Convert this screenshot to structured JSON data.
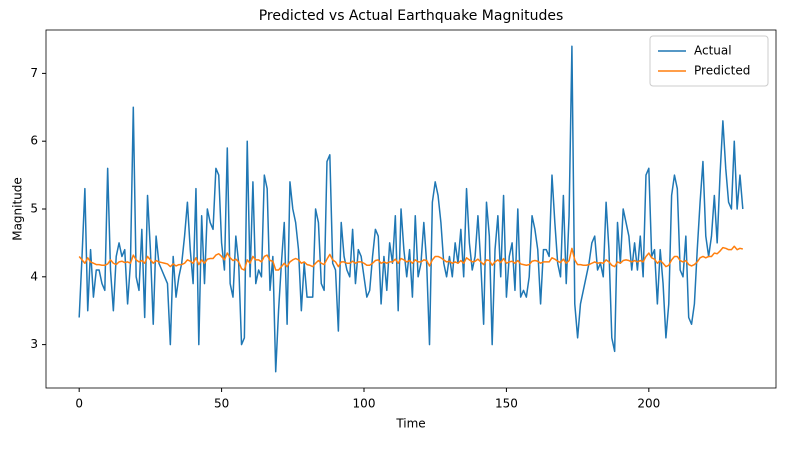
{
  "chart_data": {
    "type": "line",
    "title": "Predicted vs Actual Earthquake Magnitudes",
    "xlabel": "Time",
    "ylabel": "Magnitude",
    "x": [
      0,
      1,
      2,
      3,
      4,
      5,
      6,
      7,
      8,
      9,
      10,
      11,
      12,
      13,
      14,
      15,
      16,
      17,
      18,
      19,
      20,
      21,
      22,
      23,
      24,
      25,
      26,
      27,
      28,
      29,
      30,
      31,
      32,
      33,
      34,
      35,
      36,
      37,
      38,
      39,
      40,
      41,
      42,
      43,
      44,
      45,
      46,
      47,
      48,
      49,
      50,
      51,
      52,
      53,
      54,
      55,
      56,
      57,
      58,
      59,
      60,
      61,
      62,
      63,
      64,
      65,
      66,
      67,
      68,
      69,
      70,
      71,
      72,
      73,
      74,
      75,
      76,
      77,
      78,
      79,
      80,
      81,
      82,
      83,
      84,
      85,
      86,
      87,
      88,
      89,
      90,
      91,
      92,
      93,
      94,
      95,
      96,
      97,
      98,
      99,
      100,
      101,
      102,
      103,
      104,
      105,
      106,
      107,
      108,
      109,
      110,
      111,
      112,
      113,
      114,
      115,
      116,
      117,
      118,
      119,
      120,
      121,
      122,
      123,
      124,
      125,
      126,
      127,
      128,
      129,
      130,
      131,
      132,
      133,
      134,
      135,
      136,
      137,
      138,
      139,
      140,
      141,
      142,
      143,
      144,
      145,
      146,
      147,
      148,
      149,
      150,
      151,
      152,
      153,
      154,
      155,
      156,
      157,
      158,
      159,
      160,
      161,
      162,
      163,
      164,
      165,
      166,
      167,
      168,
      169,
      170,
      171,
      172,
      173,
      174,
      175,
      176,
      177,
      178,
      179,
      180,
      181,
      182,
      183,
      184,
      185,
      186,
      187,
      188,
      189,
      190,
      191,
      192,
      193,
      194,
      195,
      196,
      197,
      198,
      199,
      200,
      201,
      202,
      203,
      204,
      205,
      206,
      207,
      208,
      209,
      210,
      211,
      212,
      213,
      214,
      215,
      216,
      217,
      218,
      219,
      220,
      221,
      222,
      223,
      224,
      225,
      226,
      227,
      228,
      229,
      230,
      231,
      232,
      233
    ],
    "series": [
      {
        "name": "Actual",
        "color": "#1f77b4",
        "values": [
          3.4,
          4.3,
          5.3,
          3.5,
          4.4,
          3.7,
          4.1,
          4.1,
          3.9,
          3.8,
          5.6,
          4.1,
          3.5,
          4.3,
          4.5,
          4.3,
          4.4,
          3.6,
          4.2,
          6.5,
          4.0,
          3.8,
          4.7,
          3.4,
          5.2,
          4.4,
          3.3,
          4.6,
          4.2,
          4.1,
          4.0,
          3.9,
          3.0,
          4.3,
          3.7,
          4.0,
          4.2,
          4.6,
          5.1,
          4.4,
          3.9,
          5.3,
          3.0,
          4.9,
          3.9,
          5.0,
          4.8,
          4.7,
          5.6,
          5.5,
          4.5,
          4.1,
          5.9,
          3.9,
          3.7,
          4.6,
          4.2,
          3.0,
          3.1,
          6.0,
          4.0,
          5.4,
          3.9,
          4.1,
          4.0,
          5.5,
          5.3,
          3.8,
          4.3,
          2.6,
          3.5,
          4.2,
          4.8,
          3.3,
          5.4,
          5.0,
          4.8,
          4.4,
          3.5,
          4.2,
          3.7,
          3.7,
          3.7,
          5.0,
          4.8,
          3.9,
          3.8,
          5.7,
          5.8,
          4.2,
          4.1,
          3.2,
          4.8,
          4.3,
          4.1,
          4.0,
          4.7,
          3.9,
          4.4,
          4.3,
          4.0,
          3.7,
          3.8,
          4.3,
          4.7,
          4.6,
          3.6,
          4.3,
          3.8,
          4.5,
          4.2,
          4.9,
          3.5,
          5.0,
          4.4,
          4.0,
          4.4,
          3.7,
          4.9,
          4.0,
          4.2,
          4.8,
          4.2,
          3.0,
          5.1,
          5.4,
          5.2,
          4.8,
          4.2,
          4.0,
          4.3,
          4.0,
          4.5,
          4.2,
          4.7,
          4.0,
          5.3,
          4.5,
          4.1,
          4.3,
          4.9,
          4.2,
          3.3,
          5.1,
          4.6,
          3.0,
          4.4,
          4.9,
          4.0,
          5.2,
          3.7,
          4.3,
          4.5,
          3.8,
          5.0,
          3.7,
          3.8,
          3.7,
          4.0,
          4.9,
          4.7,
          4.4,
          3.6,
          4.4,
          4.4,
          4.3,
          5.5,
          4.8,
          4.2,
          4.0,
          5.2,
          3.9,
          4.9,
          7.4,
          3.6,
          3.1,
          3.6,
          3.8,
          4.0,
          4.2,
          4.5,
          4.6,
          4.1,
          4.2,
          4.0,
          5.1,
          4.4,
          3.1,
          2.9,
          4.8,
          4.2,
          5.0,
          4.8,
          4.6,
          4.1,
          4.5,
          4.1,
          4.6,
          4.0,
          5.5,
          5.6,
          4.3,
          4.4,
          3.6,
          4.4,
          3.9,
          3.1,
          3.6,
          5.2,
          5.5,
          5.3,
          4.1,
          4.0,
          4.6,
          3.4,
          3.3,
          3.6,
          4.4,
          5.1,
          5.7,
          4.6,
          4.3,
          4.6,
          5.2,
          4.5,
          5.5,
          6.3,
          5.6,
          5.1,
          5.0,
          6.0,
          5.0,
          5.5,
          5.0
        ]
      },
      {
        "name": "Predicted",
        "color": "#ff7f0e",
        "values": [
          4.3,
          4.25,
          4.2,
          4.28,
          4.22,
          4.2,
          4.18,
          4.18,
          4.17,
          4.17,
          4.19,
          4.25,
          4.2,
          4.18,
          4.22,
          4.23,
          4.21,
          4.22,
          4.2,
          4.32,
          4.25,
          4.22,
          4.24,
          4.2,
          4.3,
          4.25,
          4.2,
          4.24,
          4.22,
          4.21,
          4.2,
          4.19,
          4.15,
          4.19,
          4.16,
          4.18,
          4.18,
          4.2,
          4.25,
          4.23,
          4.2,
          4.28,
          4.18,
          4.25,
          4.2,
          4.26,
          4.27,
          4.27,
          4.32,
          4.34,
          4.3,
          4.25,
          4.35,
          4.28,
          4.24,
          4.26,
          4.22,
          4.12,
          4.1,
          4.25,
          4.2,
          4.3,
          4.25,
          4.25,
          4.22,
          4.3,
          4.32,
          4.24,
          4.23,
          4.1,
          4.1,
          4.15,
          4.2,
          4.15,
          4.22,
          4.25,
          4.27,
          4.25,
          4.2,
          4.22,
          4.18,
          4.17,
          4.15,
          4.2,
          4.24,
          4.2,
          4.18,
          4.26,
          4.33,
          4.25,
          4.22,
          4.15,
          4.22,
          4.22,
          4.2,
          4.2,
          4.23,
          4.2,
          4.22,
          4.22,
          4.2,
          4.17,
          4.17,
          4.2,
          4.24,
          4.25,
          4.2,
          4.22,
          4.2,
          4.22,
          4.22,
          4.26,
          4.2,
          4.27,
          4.25,
          4.22,
          4.24,
          4.2,
          4.25,
          4.22,
          4.22,
          4.25,
          4.24,
          4.16,
          4.25,
          4.3,
          4.3,
          4.28,
          4.25,
          4.22,
          4.23,
          4.2,
          4.22,
          4.2,
          4.24,
          4.2,
          4.28,
          4.25,
          4.22,
          4.23,
          4.26,
          4.22,
          4.18,
          4.25,
          4.24,
          4.17,
          4.22,
          4.25,
          4.21,
          4.27,
          4.2,
          4.22,
          4.23,
          4.2,
          4.24,
          4.19,
          4.18,
          4.17,
          4.18,
          4.23,
          4.24,
          4.23,
          4.2,
          4.22,
          4.22,
          4.22,
          4.28,
          4.26,
          4.23,
          4.21,
          4.26,
          4.2,
          4.24,
          4.42,
          4.25,
          4.18,
          4.18,
          4.17,
          4.17,
          4.18,
          4.2,
          4.22,
          4.2,
          4.21,
          4.2,
          4.25,
          4.22,
          4.17,
          4.15,
          4.22,
          4.2,
          4.24,
          4.25,
          4.24,
          4.22,
          4.24,
          4.22,
          4.24,
          4.22,
          4.3,
          4.35,
          4.28,
          4.26,
          4.2,
          4.24,
          4.2,
          4.15,
          4.17,
          4.25,
          4.3,
          4.3,
          4.24,
          4.22,
          4.24,
          4.18,
          4.16,
          4.18,
          4.22,
          4.28,
          4.3,
          4.28,
          4.3,
          4.3,
          4.35,
          4.34,
          4.38,
          4.43,
          4.42,
          4.4,
          4.4,
          4.45,
          4.4,
          4.42,
          4.41
        ]
      }
    ],
    "xlim": [
      -11.65,
      244.65
    ],
    "xticks": [
      0,
      50,
      100,
      150,
      200
    ],
    "ylim": [
      2.36,
      7.64
    ],
    "yticks": [
      3,
      4,
      5,
      6,
      7
    ],
    "grid": false,
    "legend": "upper right"
  }
}
